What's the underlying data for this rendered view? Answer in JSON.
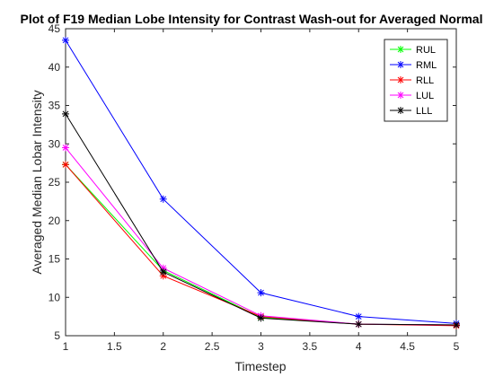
{
  "chart_data": {
    "type": "line",
    "title": "Plot of F19 Median Lobe Intensity for Contrast Wash-out for Averaged Normal",
    "xlabel": "Timestep",
    "ylabel": "Averaged Median Lobar Intensity",
    "xlim": [
      1,
      5
    ],
    "ylim": [
      5,
      45
    ],
    "xticks": [
      "1",
      "1.5",
      "2",
      "2.5",
      "3",
      "3.5",
      "4",
      "4.5",
      "5"
    ],
    "yticks": [
      "5",
      "10",
      "15",
      "20",
      "25",
      "30",
      "35",
      "40",
      "45"
    ],
    "x": [
      1,
      2,
      3,
      4,
      5
    ],
    "grid": false,
    "legend_position": "top-right",
    "series": [
      {
        "name": "RUL",
        "color": "#00ff00",
        "marker": "asterisk",
        "values": [
          27.3,
          13.5,
          7.4,
          6.5,
          6.4
        ]
      },
      {
        "name": "RML",
        "color": "#0000ff",
        "marker": "asterisk",
        "values": [
          43.5,
          22.8,
          10.6,
          7.5,
          6.6
        ]
      },
      {
        "name": "RLL",
        "color": "#ff0000",
        "marker": "asterisk",
        "values": [
          27.3,
          12.8,
          7.5,
          6.5,
          6.3
        ]
      },
      {
        "name": "LUL",
        "color": "#ff00ff",
        "marker": "asterisk",
        "values": [
          29.5,
          13.8,
          7.6,
          6.5,
          6.4
        ]
      },
      {
        "name": "LLL",
        "color": "#000000",
        "marker": "asterisk",
        "values": [
          33.9,
          13.3,
          7.3,
          6.5,
          6.4
        ]
      }
    ]
  }
}
